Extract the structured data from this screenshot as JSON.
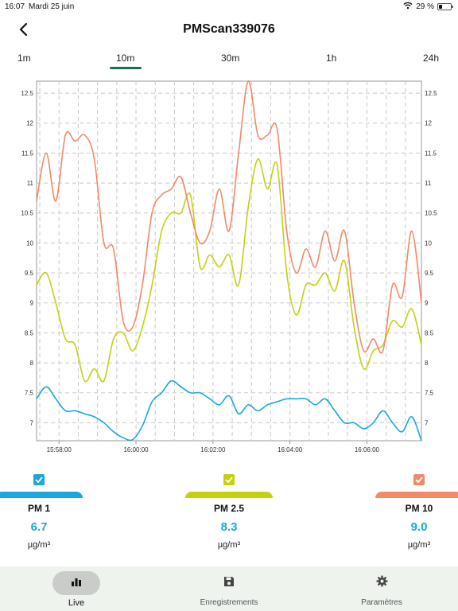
{
  "status": {
    "time": "16:07",
    "date": "Mardi 25 juin",
    "battery": "29 %"
  },
  "header": {
    "title": "PMScan339076"
  },
  "ranges": {
    "items": [
      "1m",
      "10m",
      "30m",
      "1h",
      "24h"
    ],
    "selected": "10m"
  },
  "chart_data": {
    "type": "line",
    "y_ticks": [
      "12.5",
      "12",
      "11.5",
      "11",
      "10.5",
      "10",
      "9.5",
      "9",
      "8.5",
      "8",
      "7.5",
      "7"
    ],
    "x_ticks": [
      "15:58:00",
      "16:00:00",
      "16:02:00",
      "16:04:00",
      "16:06:00"
    ],
    "ylim": [
      6.7,
      12.7
    ],
    "grid": true,
    "x_start": "15:57:25",
    "x_end": "16:07:25",
    "series": [
      {
        "name": "PM 1",
        "color": "#1aa7dc",
        "points": [
          [
            "15:57:25",
            7.4
          ],
          [
            "15:57:40",
            7.6
          ],
          [
            "15:57:55",
            7.4
          ],
          [
            "15:58:10",
            7.2
          ],
          [
            "15:58:25",
            7.2
          ],
          [
            "15:58:40",
            7.15
          ],
          [
            "15:58:55",
            7.1
          ],
          [
            "15:59:10",
            7.0
          ],
          [
            "15:59:25",
            6.85
          ],
          [
            "15:59:40",
            6.75
          ],
          [
            "15:59:55",
            6.72
          ],
          [
            "16:00:10",
            6.95
          ],
          [
            "16:00:25",
            7.35
          ],
          [
            "16:00:40",
            7.5
          ],
          [
            "16:00:55",
            7.7
          ],
          [
            "16:01:10",
            7.6
          ],
          [
            "16:01:25",
            7.5
          ],
          [
            "16:01:40",
            7.5
          ],
          [
            "16:01:55",
            7.4
          ],
          [
            "16:02:10",
            7.3
          ],
          [
            "16:02:25",
            7.45
          ],
          [
            "16:02:40",
            7.15
          ],
          [
            "16:02:55",
            7.3
          ],
          [
            "16:03:10",
            7.2
          ],
          [
            "16:03:25",
            7.3
          ],
          [
            "16:03:40",
            7.35
          ],
          [
            "16:03:55",
            7.4
          ],
          [
            "16:04:10",
            7.4
          ],
          [
            "16:04:25",
            7.4
          ],
          [
            "16:04:40",
            7.3
          ],
          [
            "16:04:55",
            7.4
          ],
          [
            "16:05:10",
            7.2
          ],
          [
            "16:05:25",
            7.0
          ],
          [
            "16:05:40",
            7.0
          ],
          [
            "16:05:55",
            6.9
          ],
          [
            "16:06:10",
            7.0
          ],
          [
            "16:06:25",
            7.2
          ],
          [
            "16:06:40",
            7.0
          ],
          [
            "16:06:55",
            6.85
          ],
          [
            "16:07:10",
            7.1
          ],
          [
            "16:07:25",
            6.7
          ]
        ]
      },
      {
        "name": "PM 2.5",
        "color": "#c5d10f",
        "points": [
          [
            "15:57:25",
            9.3
          ],
          [
            "15:57:40",
            9.5
          ],
          [
            "15:57:55",
            9.0
          ],
          [
            "15:58:10",
            8.4
          ],
          [
            "15:58:25",
            8.3
          ],
          [
            "15:58:40",
            7.7
          ],
          [
            "15:58:55",
            7.9
          ],
          [
            "15:59:10",
            7.7
          ],
          [
            "15:59:25",
            8.4
          ],
          [
            "15:59:40",
            8.5
          ],
          [
            "15:59:55",
            8.2
          ],
          [
            "16:00:10",
            8.6
          ],
          [
            "16:00:25",
            9.3
          ],
          [
            "16:00:40",
            10.2
          ],
          [
            "16:00:55",
            10.5
          ],
          [
            "16:01:10",
            10.5
          ],
          [
            "16:01:25",
            10.8
          ],
          [
            "16:01:40",
            9.6
          ],
          [
            "16:01:55",
            9.8
          ],
          [
            "16:02:10",
            9.6
          ],
          [
            "16:02:25",
            9.8
          ],
          [
            "16:02:40",
            9.3
          ],
          [
            "16:02:55",
            10.6
          ],
          [
            "16:03:10",
            11.4
          ],
          [
            "16:03:25",
            10.9
          ],
          [
            "16:03:40",
            11.3
          ],
          [
            "16:03:55",
            9.5
          ],
          [
            "16:04:10",
            8.8
          ],
          [
            "16:04:25",
            9.3
          ],
          [
            "16:04:40",
            9.3
          ],
          [
            "16:04:55",
            9.5
          ],
          [
            "16:05:10",
            9.2
          ],
          [
            "16:05:25",
            9.7
          ],
          [
            "16:05:40",
            8.6
          ],
          [
            "16:05:55",
            7.9
          ],
          [
            "16:06:10",
            8.2
          ],
          [
            "16:06:25",
            8.3
          ],
          [
            "16:06:40",
            8.7
          ],
          [
            "16:06:55",
            8.6
          ],
          [
            "16:07:10",
            8.9
          ],
          [
            "16:07:25",
            8.3
          ]
        ]
      },
      {
        "name": "PM 10",
        "color": "#f08a6a",
        "points": [
          [
            "15:57:25",
            10.7
          ],
          [
            "15:57:40",
            11.5
          ],
          [
            "15:57:55",
            10.7
          ],
          [
            "15:58:10",
            11.8
          ],
          [
            "15:58:25",
            11.7
          ],
          [
            "15:58:40",
            11.8
          ],
          [
            "15:58:55",
            11.4
          ],
          [
            "15:59:10",
            10.0
          ],
          [
            "15:59:25",
            9.9
          ],
          [
            "15:59:40",
            8.7
          ],
          [
            "15:59:55",
            8.6
          ],
          [
            "16:00:10",
            9.3
          ],
          [
            "16:00:25",
            10.5
          ],
          [
            "16:00:40",
            10.8
          ],
          [
            "16:00:55",
            10.9
          ],
          [
            "16:01:10",
            11.1
          ],
          [
            "16:01:25",
            10.5
          ],
          [
            "16:01:40",
            10.0
          ],
          [
            "16:01:55",
            10.2
          ],
          [
            "16:02:10",
            10.9
          ],
          [
            "16:02:25",
            10.2
          ],
          [
            "16:02:40",
            11.5
          ],
          [
            "16:02:55",
            12.7
          ],
          [
            "16:03:10",
            11.8
          ],
          [
            "16:03:25",
            11.8
          ],
          [
            "16:03:40",
            11.9
          ],
          [
            "16:03:55",
            10.2
          ],
          [
            "16:04:10",
            9.5
          ],
          [
            "16:04:25",
            9.9
          ],
          [
            "16:04:40",
            9.6
          ],
          [
            "16:04:55",
            10.2
          ],
          [
            "16:05:10",
            9.7
          ],
          [
            "16:05:25",
            10.2
          ],
          [
            "16:05:40",
            9.0
          ],
          [
            "16:05:55",
            8.2
          ],
          [
            "16:06:10",
            8.4
          ],
          [
            "16:06:25",
            8.2
          ],
          [
            "16:06:40",
            9.3
          ],
          [
            "16:06:55",
            9.1
          ],
          [
            "16:07:10",
            10.2
          ],
          [
            "16:07:25",
            9.0
          ]
        ]
      }
    ]
  },
  "metrics": [
    {
      "name": "PM 1",
      "value": "6.7",
      "unit": "µg/m³",
      "color": "#1aa7dc"
    },
    {
      "name": "PM 2.5",
      "value": "8.3",
      "unit": "µg/m³",
      "color": "#c5d10f"
    },
    {
      "name": "PM 10",
      "value": "9.0",
      "unit": "µg/m³",
      "color": "#f08a6a"
    }
  ],
  "nav": {
    "live": "Live",
    "recordings": "Enregistrements",
    "settings": "Paramètres"
  },
  "icons": {
    "back": "chevron-left-icon",
    "live": "bar-chart-icon",
    "recordings": "save-icon",
    "settings": "gear-icon",
    "wifi": "wifi-icon",
    "battery": "battery-icon",
    "checkbox": "checkbox-checked-icon"
  },
  "colors": {
    "accent": "#1b6b55",
    "nav_bg": "#eef3ee",
    "value": "#1aa7dc"
  }
}
